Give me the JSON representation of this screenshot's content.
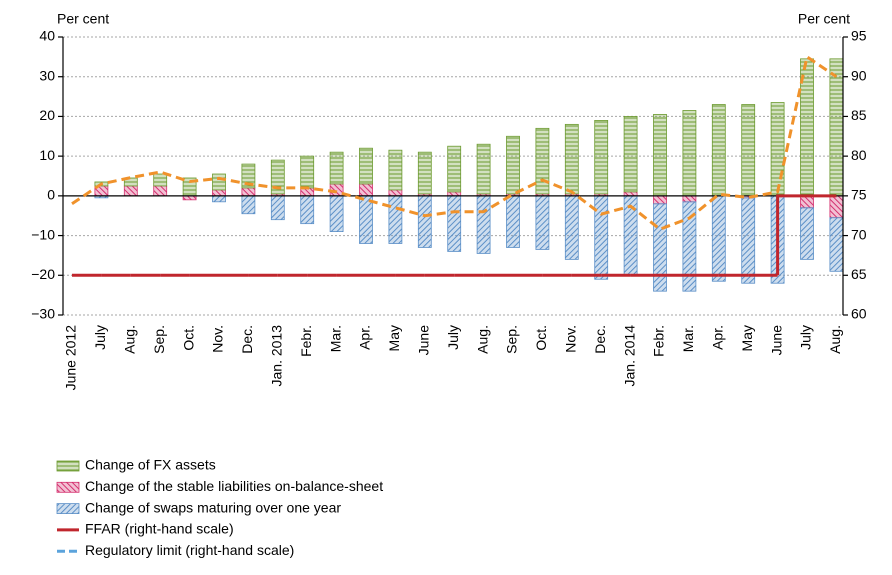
{
  "chart_data": {
    "type": "bar",
    "y_label": "Per cent",
    "y2_label": "Per cent",
    "categories": [
      "June 2012",
      "July",
      "Aug.",
      "Sep.",
      "Oct.",
      "Nov.",
      "Dec.",
      "Jan. 2013",
      "Febr.",
      "Mar.",
      "Apr.",
      "May",
      "June",
      "July",
      "Aug.",
      "Sep.",
      "Oct.",
      "Nov.",
      "Dec.",
      "Jan. 2014",
      "Febr.",
      "Mar.",
      "Apr.",
      "May",
      "June",
      "July",
      "Aug."
    ],
    "series": [
      {
        "name": "Change of FX assets",
        "color": "#6b9a2e",
        "values": [
          null,
          1,
          2,
          3,
          4.5,
          4,
          6,
          8.5,
          8,
          8,
          9,
          10,
          10.5,
          11.5,
          12.5,
          14.5,
          16.5,
          17.5,
          18.5,
          19,
          20.5,
          21.5,
          23,
          23,
          23.5,
          34.5,
          34.5
        ]
      },
      {
        "name": "Change of the stable liabilities on-balance-sheet",
        "color": "#d4306f",
        "values": [
          null,
          2.5,
          2.5,
          2.5,
          -1,
          1.5,
          2,
          0.5,
          2,
          3,
          3,
          1.5,
          0.5,
          1,
          0.5,
          0.5,
          0.5,
          0.5,
          0.5,
          1,
          -2,
          -1.5,
          0,
          -0.5,
          0,
          -3,
          -5.5
        ]
      },
      {
        "name": "Change of swaps maturing over one year",
        "color": "#5b8fc7",
        "values": [
          null,
          -0.5,
          0,
          0,
          0,
          -1.5,
          -4.5,
          -6,
          -7,
          -9,
          -12,
          -12,
          -13,
          -14,
          -14.5,
          -13,
          -13.5,
          -16,
          -21,
          -20,
          -22,
          -22.5,
          -21.5,
          -21.5,
          -22,
          -13,
          -13.5
        ]
      },
      {
        "name": "FFAR (right-hand scale)",
        "type": "line",
        "axis": "y2",
        "color": "#f0922b",
        "dashed": true,
        "legend_color": "#c0262d",
        "legend_dashed": false,
        "values": [
          74,
          76.5,
          77.3,
          78,
          76.8,
          77.2,
          76.5,
          76,
          76,
          75.5,
          74.5,
          73.5,
          72.5,
          73,
          73,
          75.2,
          77,
          75.5,
          72.7,
          73.7,
          70.8,
          72.2,
          75.2,
          74.8,
          75.5,
          92.5,
          90
        ]
      },
      {
        "name": "Regulatory limit (right-hand scale)",
        "type": "step",
        "axis": "y2",
        "color": "#c0262d",
        "dashed": false,
        "legend_color": "#5ba3dc",
        "legend_dashed": true,
        "values": [
          65,
          65,
          65,
          65,
          65,
          65,
          65,
          65,
          65,
          65,
          65,
          65,
          65,
          65,
          65,
          65,
          65,
          65,
          65,
          65,
          65,
          65,
          65,
          65,
          65,
          75,
          75
        ]
      }
    ],
    "ylim": [
      -30,
      40
    ],
    "yticks": [
      {
        "value": -30,
        "label": "−30"
      },
      {
        "value": -20,
        "label": "−20"
      },
      {
        "value": -10,
        "label": "−10"
      },
      0,
      10,
      20,
      30,
      40
    ],
    "y2lim": [
      60,
      95
    ],
    "y2ticks": [
      60,
      65,
      70,
      75,
      80,
      85,
      90,
      95
    ],
    "grid": true
  }
}
